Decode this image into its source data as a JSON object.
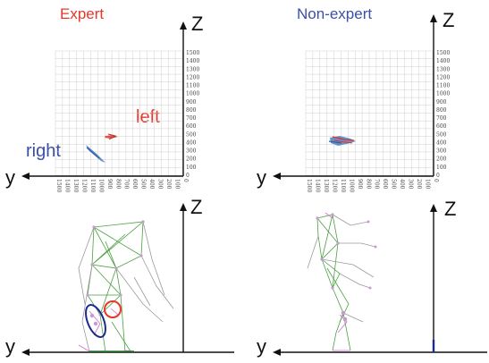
{
  "panels": {
    "expert": {
      "title": "Expert",
      "labels": {
        "left": "left",
        "right": "right"
      },
      "axes": {
        "z": "Z",
        "y": "y"
      }
    },
    "non_expert": {
      "title": "Non-expert",
      "axes": {
        "z": "Z",
        "y": "y"
      }
    },
    "skeleton_expert": {
      "axes": {
        "z": "Z",
        "y": "y"
      }
    },
    "skeleton_non_expert": {
      "axes": {
        "z": "Z",
        "y": "y"
      }
    }
  },
  "z_ticks": [
    "1500",
    "1400",
    "1300",
    "1200",
    "1100",
    "1000",
    "900",
    "800",
    "700",
    "600",
    "500",
    "400",
    "300",
    "200",
    "100",
    "0"
  ],
  "y_ticks_expert": [
    "1500",
    "1400",
    "1300",
    "1200",
    "1100",
    "1000",
    "900",
    "800",
    "700",
    "600",
    "500",
    "400",
    "300",
    "200",
    "100",
    "0"
  ],
  "y_ticks_non_expert": [
    "1500",
    "1400",
    "1300",
    "1200",
    "1100",
    "1000",
    "900",
    "800",
    "700",
    "600",
    "500",
    "400",
    "300",
    "200",
    "100",
    "0"
  ],
  "colors": {
    "expert_title": "#e8372a",
    "non_expert_title": "#3b4fa8",
    "left_label": "#e8372a",
    "right_label": "#3b4fa8",
    "grid": "#cfcfcf",
    "skeleton_green": "#4aa040",
    "skeleton_gray": "#9a9a9a",
    "skeleton_pink": "#d76ad6",
    "trace_blue": "#4f7fc2",
    "trace_red": "#d9372f"
  }
}
